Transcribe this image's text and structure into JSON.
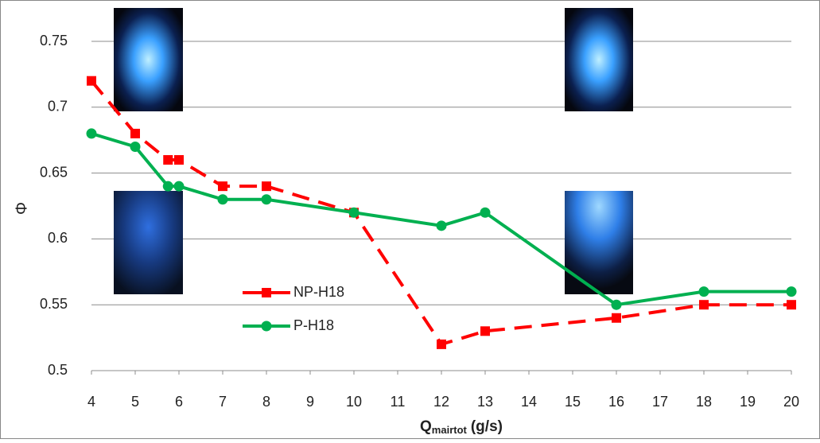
{
  "chart_data": {
    "type": "line",
    "x_label": {
      "main": "Q",
      "sub": "mairtot",
      "unit": "(g/s)"
    },
    "y_label": "Φ",
    "x": [
      4,
      5,
      5.75,
      6,
      7,
      8,
      10,
      12,
      13,
      16,
      18,
      20
    ],
    "series": [
      {
        "name": "NP-H18",
        "color": "#ff0000",
        "line_style": "dashed",
        "marker": "square",
        "values": [
          0.72,
          0.68,
          0.66,
          0.66,
          0.64,
          0.64,
          0.62,
          0.52,
          0.53,
          0.54,
          0.55,
          0.55
        ]
      },
      {
        "name": "P-H18",
        "color": "#00b050",
        "line_style": "solid",
        "marker": "circle",
        "values": [
          0.68,
          0.67,
          0.64,
          0.64,
          0.63,
          0.63,
          0.62,
          0.61,
          0.62,
          0.55,
          0.56,
          0.56
        ]
      }
    ],
    "xlim": [
      4,
      20
    ],
    "xticks": [
      4,
      5,
      6,
      7,
      8,
      9,
      10,
      11,
      12,
      13,
      14,
      15,
      16,
      17,
      18,
      19,
      20
    ],
    "ylim": [
      0.5,
      0.75
    ],
    "yticks": [
      0.5,
      0.55,
      0.6,
      0.65,
      0.7,
      0.75
    ],
    "grid": true,
    "legend": "center-left"
  }
}
